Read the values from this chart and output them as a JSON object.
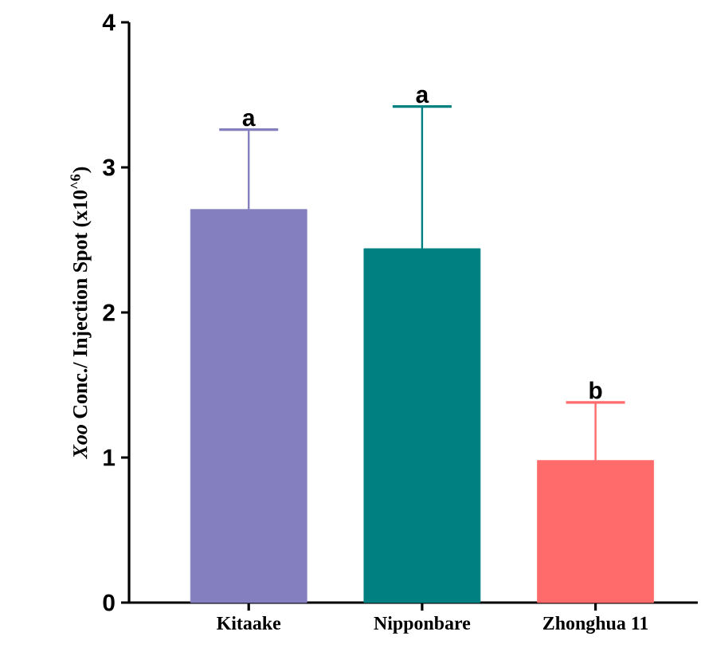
{
  "chart_data": {
    "type": "bar",
    "ylabel": "*Xoo* Conc./ Injection Spot  (x10$^{^6}$)",
    "categories": [
      "Kitaake",
      "Nipponbare",
      "Zhonghua 11"
    ],
    "values": [
      2.71,
      2.44,
      0.98
    ],
    "colors": [
      "#8480c0",
      "#008080",
      "#ff6b6b"
    ],
    "errors": [
      [
        2.71,
        3.26
      ],
      [
        2.44,
        3.42
      ],
      [
        0.98,
        1.38
      ]
    ],
    "ylim": [
      0,
      4
    ],
    "yticks": [
      0,
      1,
      2,
      3,
      4
    ],
    "annotations": [
      {
        "text": "a",
        "x": "Kitaake",
        "y": 3.26
      },
      {
        "text": "a",
        "x": "Nipponbare",
        "y": 3.42
      },
      {
        "text": "b",
        "x": "Zhonghua 11",
        "y": 1.38
      }
    ]
  }
}
